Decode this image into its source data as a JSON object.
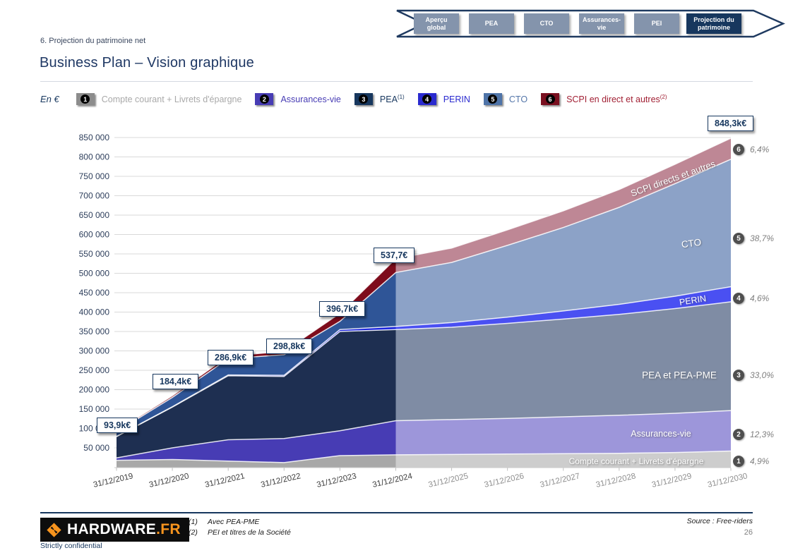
{
  "header": {
    "section_label": "6. Projection du patrimoine net",
    "title": "Business Plan – Vision graphique",
    "nav_tabs": [
      {
        "label": "Aperçu global",
        "active": false
      },
      {
        "label": "PEA",
        "active": false
      },
      {
        "label": "CTO",
        "active": false
      },
      {
        "label": "Assurances-vie",
        "active": false
      },
      {
        "label": "PEI",
        "active": false
      },
      {
        "label": "Projection du patrimoine",
        "active": true
      }
    ]
  },
  "legend": {
    "unit_label": "En €",
    "items": [
      {
        "number": "1",
        "label": "Compte courant + Livrets d'épargne",
        "sup": "",
        "chip_color": "#8c8c8c",
        "text_color": "#a9a9a9"
      },
      {
        "number": "2",
        "label": "Assurances-vie",
        "sup": "",
        "chip_color": "#473cb4",
        "text_color": "#473cb4"
      },
      {
        "number": "3",
        "label": "PEA",
        "sup": "(1)",
        "chip_color": "#17375e",
        "text_color": "#17375e"
      },
      {
        "number": "4",
        "label": "PERIN",
        "sup": "",
        "chip_color": "#2a2acf",
        "text_color": "#2a2acf"
      },
      {
        "number": "5",
        "label": "CTO",
        "sup": "",
        "chip_color": "#4f74a8",
        "text_color": "#5577aa"
      },
      {
        "number": "6",
        "label": "SCPI en direct et autres",
        "sup": "(2)",
        "chip_color": "#7a1020",
        "text_color": "#a11f33"
      }
    ]
  },
  "chart_data": {
    "type": "area",
    "stacked": true,
    "values_unit": "k€",
    "x_labels": [
      "31/12/2019",
      "31/12/2020",
      "31/12/2021",
      "31/12/2022",
      "31/12/2023",
      "31/12/2024",
      "31/12/2025",
      "31/12/2026",
      "31/12/2027",
      "31/12/2028",
      "31/12/2029",
      "31/12/2030"
    ],
    "historical_last_index": 5,
    "y_axis": {
      "min": 50000,
      "max": 850000,
      "step": 50000
    },
    "grid": true,
    "series": [
      {
        "id": "cc",
        "number": 1,
        "name": "Compte courant + Livrets d'épargne",
        "area_label": "Compte courant + Livrets d'épargne",
        "final_share": "4,9%",
        "color_hist": "#a8a8a8",
        "color_proj": "#cdcdcd",
        "values": [
          18,
          20,
          16,
          12,
          30,
          32,
          33,
          34,
          35,
          36,
          38,
          41.9
        ]
      },
      {
        "id": "av",
        "number": 2,
        "name": "Assurances-vie",
        "area_label": "Assurances-vie",
        "final_share": "12,3%",
        "color_hist": "#473cb4",
        "color_proj": "#9d96da",
        "values": [
          6,
          30,
          55,
          62,
          64,
          88,
          90,
          92,
          95,
          98,
          101,
          104.3
        ]
      },
      {
        "id": "pea",
        "number": 3,
        "name": "PEA et PEA-PME",
        "area_label": "PEA et PEA-PME",
        "final_share": "33,0%",
        "color_hist": "#1e2f51",
        "color_proj": "#7f8ca4",
        "values": [
          55,
          105,
          165,
          160,
          256,
          235,
          238,
          245,
          252,
          260,
          270,
          280.3
        ]
      },
      {
        "id": "perin",
        "number": 4,
        "name": "PERIN",
        "area_label": "PERIN",
        "final_share": "4,6%",
        "color_hist": "#1b24dc",
        "color_proj": "#4a50f2",
        "values": [
          0.4,
          1,
          2,
          3,
          5,
          8,
          12,
          16,
          21,
          26,
          32,
          39
        ]
      },
      {
        "id": "cto",
        "number": 5,
        "name": "CTO",
        "area_label": "CTO",
        "final_share": "38,7%",
        "color_hist": "#2f5597",
        "color_proj": "#8ca2c7",
        "values": [
          12,
          24,
          42,
          53,
          21,
          139,
          155,
          185,
          215,
          250,
          290,
          328.5
        ]
      },
      {
        "id": "scpi",
        "number": 6,
        "name": "SCPI en direct et autres",
        "area_label": "SCPI directs et autres",
        "final_share": "6,4%",
        "color_hist": "#7e0c1c",
        "color_proj": "#be8795",
        "values": [
          2.5,
          4.4,
          6.9,
          8.8,
          20.7,
          35.7,
          37,
          40,
          43,
          46,
          50,
          54.3
        ]
      }
    ],
    "total_labels": [
      {
        "x_index": 0,
        "text": "93,9k€"
      },
      {
        "x_index": 1,
        "text": "184,4k€"
      },
      {
        "x_index": 2,
        "text": "286,9k€"
      },
      {
        "x_index": 3,
        "text": "298,8k€"
      },
      {
        "x_index": 4,
        "text": "396,7k€"
      },
      {
        "x_index": 5,
        "text": "537,7€"
      },
      {
        "x_index": 11,
        "text": "848,3k€"
      }
    ]
  },
  "footer": {
    "logo": {
      "text_main": "HARDWARE",
      "text_suffix": ".FR"
    },
    "footnotes": [
      {
        "num": "(1)",
        "text": "Avec PEA-PME"
      },
      {
        "num": "(2)",
        "text": "PEI et titres de la Société"
      }
    ],
    "source": "Source : Free-riders",
    "page_number": "26",
    "confidential": "Strictly confidential"
  }
}
